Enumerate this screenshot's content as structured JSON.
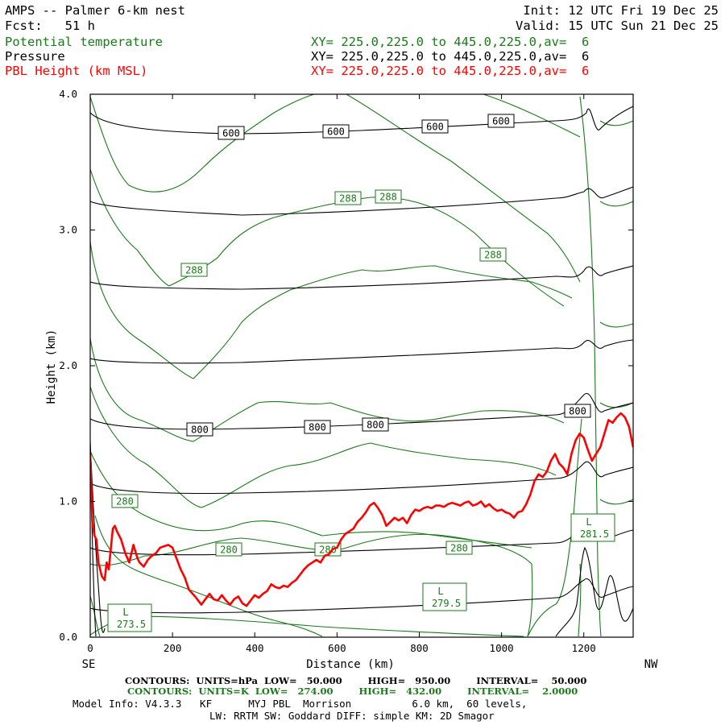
{
  "header": {
    "title": "AMPS -- Palmer 6-km nest",
    "fcst": "Fcst:   51 h",
    "init": "Init: 12 UTC Fri 19 Dec 25",
    "valid": "Valid: 15 UTC Sun 21 Dec 25",
    "fields": [
      {
        "name": "Potential temperature",
        "xy": "XY= 225.0,225.0 to 445.0,225.0,av=  6",
        "color": "#1a7a1a"
      },
      {
        "name": "Pressure",
        "xy": "XY= 225.0,225.0 to 445.0,225.0,av=  6",
        "color": "#000000"
      },
      {
        "name": "PBL Height (km MSL)",
        "xy": "XY= 225.0,225.0 to 445.0,225.0,av=  6",
        "color": "#ff0000"
      }
    ]
  },
  "footer": {
    "contours_p": "CONTOURS:  UNITS=hPa  LOW=   50.000        HIGH=   950.00        INTERVAL=    50.000",
    "contours_t": "CONTOURS:  UNITS=K  LOW=   274.00        HIGH=   432.00        INTERVAL=    2.0000",
    "model1": "Model Info: V4.3.3   KF      MYJ PBL  Morrison          6.0 km,  60 levels,",
    "model2": "LW: RRTM SW: Goddard DIFF: simple KM: 2D Smagor",
    "left_end": "SE",
    "right_end": "NW"
  },
  "chart_data": {
    "type": "line",
    "title": "AMPS -- Palmer 6-km nest",
    "xlabel": "Distance (km)",
    "ylabel": "Height (km)",
    "xlim": [
      0,
      1320
    ],
    "ylim": [
      0,
      4.0
    ],
    "xticks": [
      0,
      200,
      400,
      600,
      800,
      1000,
      1200
    ],
    "yticks": [
      "0.0",
      "1.0",
      "2.0",
      "3.0",
      "4.0"
    ],
    "series": [
      {
        "name": "PBL Height (km MSL)",
        "color": "#ff0000",
        "x": [
          0,
          5,
          10,
          15,
          20,
          28,
          35,
          40,
          45,
          50,
          55,
          60,
          65,
          70,
          75,
          85,
          95,
          105,
          115,
          120,
          130,
          140,
          150,
          160,
          170,
          180,
          190,
          200,
          210,
          220,
          230,
          240,
          255,
          270,
          280,
          290,
          300,
          310,
          320,
          330,
          340,
          350,
          360,
          370,
          380,
          390,
          400,
          410,
          420,
          430,
          440,
          450,
          460,
          470,
          480,
          490,
          500,
          510,
          520,
          530,
          540,
          550,
          560,
          570,
          580,
          590,
          600,
          610,
          620,
          630,
          640,
          650,
          660,
          670,
          680,
          690,
          700,
          710,
          720,
          730,
          740,
          750,
          760,
          770,
          780,
          790,
          800,
          810,
          820,
          830,
          840,
          850,
          860,
          870,
          880,
          890,
          900,
          910,
          920,
          930,
          940,
          950,
          960,
          970,
          980,
          990,
          1000,
          1010,
          1020,
          1030,
          1040,
          1050,
          1060,
          1070,
          1080,
          1090,
          1100,
          1110,
          1120,
          1130,
          1140,
          1150,
          1160,
          1170,
          1180,
          1190,
          1200,
          1210,
          1220,
          1230,
          1240,
          1250,
          1260,
          1270,
          1280,
          1290,
          1300,
          1310,
          1320
        ],
        "y": [
          1.35,
          0.85,
          0.75,
          0.72,
          0.55,
          0.45,
          0.42,
          0.55,
          0.5,
          0.65,
          0.8,
          0.82,
          0.78,
          0.75,
          0.72,
          0.62,
          0.55,
          0.68,
          0.58,
          0.55,
          0.52,
          0.57,
          0.6,
          0.62,
          0.66,
          0.67,
          0.68,
          0.66,
          0.58,
          0.5,
          0.44,
          0.35,
          0.3,
          0.24,
          0.28,
          0.32,
          0.28,
          0.27,
          0.31,
          0.27,
          0.24,
          0.28,
          0.3,
          0.25,
          0.23,
          0.27,
          0.31,
          0.29,
          0.32,
          0.34,
          0.39,
          0.37,
          0.36,
          0.38,
          0.37,
          0.4,
          0.42,
          0.46,
          0.5,
          0.53,
          0.55,
          0.57,
          0.55,
          0.6,
          0.61,
          0.65,
          0.66,
          0.72,
          0.76,
          0.78,
          0.8,
          0.85,
          0.88,
          0.92,
          0.97,
          0.99,
          0.95,
          0.9,
          0.82,
          0.85,
          0.88,
          0.86,
          0.88,
          0.84,
          0.9,
          0.94,
          0.93,
          0.95,
          0.96,
          0.95,
          0.97,
          0.97,
          0.96,
          0.98,
          0.99,
          0.98,
          0.97,
          0.99,
          1.0,
          0.97,
          0.98,
          1.0,
          0.96,
          0.98,
          0.95,
          0.93,
          0.94,
          0.92,
          0.91,
          0.88,
          0.92,
          0.93,
          0.98,
          1.05,
          1.15,
          1.2,
          1.18,
          1.22,
          1.3,
          1.35,
          1.28,
          1.25,
          1.2,
          1.35,
          1.45,
          1.5,
          1.47,
          1.38,
          1.3,
          1.35,
          1.4,
          1.5,
          1.6,
          1.58,
          1.62,
          1.65,
          1.62,
          1.55,
          1.4
        ]
      }
    ]
  }
}
